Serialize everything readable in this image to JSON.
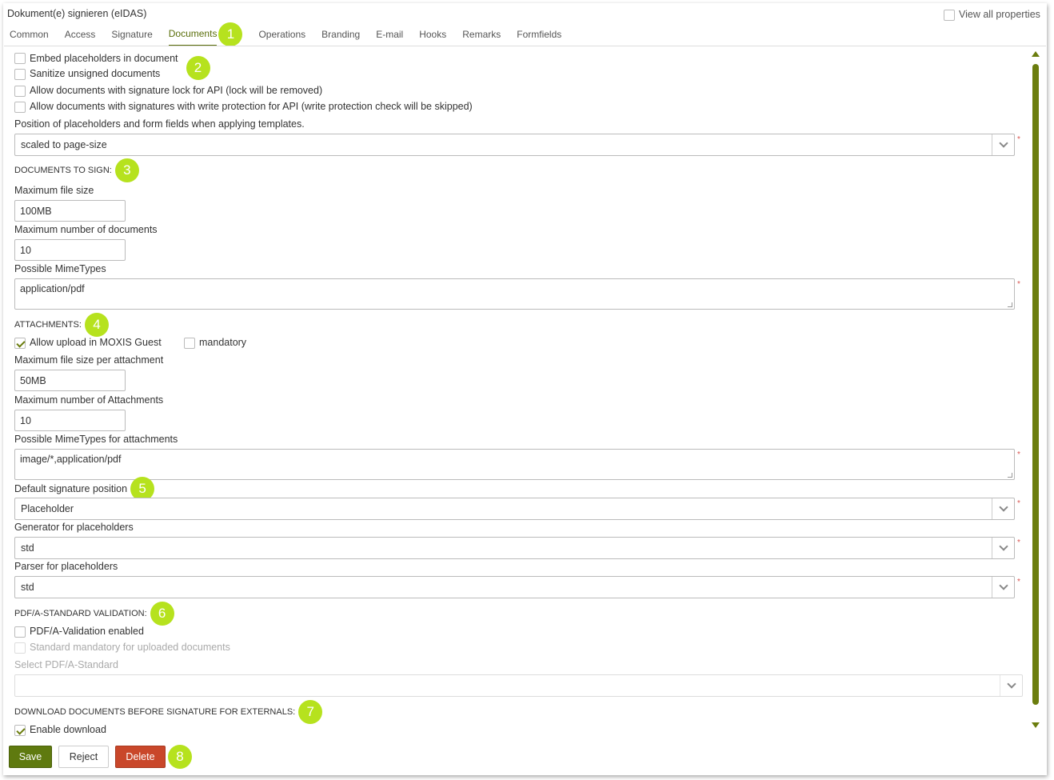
{
  "window": {
    "title": "Dokument(e) signieren (eIDAS)",
    "view_all_label": "View all properties"
  },
  "tabs": [
    "Common",
    "Access",
    "Signature",
    "Documents",
    "Operations",
    "Branding",
    "E-mail",
    "Hooks",
    "Remarks",
    "Formfields"
  ],
  "active_tab": "Documents",
  "options": {
    "embed": "Embed placeholders in document",
    "sanitize": "Sanitize unsigned documents",
    "allow_lock": "Allow documents with signature lock for API (lock will be removed)",
    "allow_protect": "Allow documents with signatures with write protection for API (write protection check will be skipped)",
    "position_label": "Position of placeholders and form fields when applying templates.",
    "position_value": "scaled to page-size"
  },
  "docs": {
    "heading": "DOCUMENTS TO SIGN:",
    "max_size_label": "Maximum file size",
    "max_size": "100MB",
    "max_count_label": "Maximum number of documents",
    "max_count": "10",
    "mime_label": "Possible MimeTypes",
    "mime": "application/pdf"
  },
  "attach": {
    "heading": "ATTACHMENTS:",
    "allow_upload": "Allow upload in MOXIS Guest",
    "allow_upload_checked": true,
    "mandatory": "mandatory",
    "mandatory_checked": false,
    "max_size_label": "Maximum file size per attachment",
    "max_size": "50MB",
    "max_count_label": "Maximum number of Attachments",
    "max_count": "10",
    "mime_label": "Possible MimeTypes for attachments",
    "mime": "image/*,application/pdf"
  },
  "sig": {
    "position_label": "Default signature position",
    "position": "Placeholder",
    "generator_label": "Generator for placeholders",
    "generator": "std",
    "parser_label": "Parser for placeholders",
    "parser": "std"
  },
  "pdfa": {
    "heading": "PDF/A-STANDARD VALIDATION:",
    "enabled": "PDF/A-Validation enabled",
    "mandatory": "Standard mandatory for uploaded documents",
    "select_label": "Select PDF/A-Standard",
    "select_value": ""
  },
  "download": {
    "heading": "DOWNLOAD DOCUMENTS BEFORE SIGNATURE FOR EXTERNALS:",
    "enable": "Enable download",
    "enable_checked": true
  },
  "buttons": {
    "save": "Save",
    "reject": "Reject",
    "delete": "Delete"
  },
  "required_mark": "*",
  "badges": [
    "1",
    "2",
    "3",
    "4",
    "5",
    "6",
    "7",
    "8"
  ],
  "colors": {
    "accent": "#6b7d0e",
    "save": "#5f7a0f",
    "delete": "#c9472a",
    "badge": "#b6e21e"
  }
}
